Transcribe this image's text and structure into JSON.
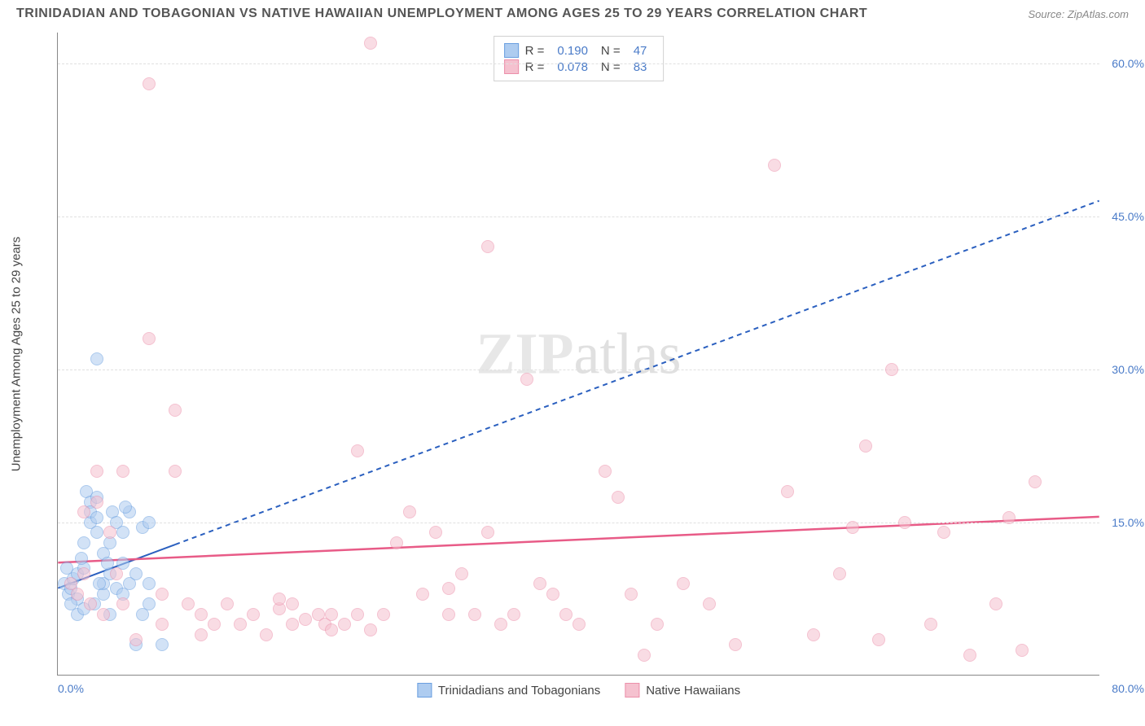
{
  "title": "TRINIDADIAN AND TOBAGONIAN VS NATIVE HAWAIIAN UNEMPLOYMENT AMONG AGES 25 TO 29 YEARS CORRELATION CHART",
  "source": "Source: ZipAtlas.com",
  "watermark_a": "ZIP",
  "watermark_b": "atlas",
  "y_axis_label": "Unemployment Among Ages 25 to 29 years",
  "chart": {
    "type": "scatter",
    "xlim": [
      0,
      80
    ],
    "ylim": [
      0,
      63
    ],
    "ytick_labels": [
      "15.0%",
      "30.0%",
      "45.0%",
      "60.0%"
    ],
    "ytick_values": [
      15,
      30,
      45,
      60
    ],
    "xtick_left": "0.0%",
    "xtick_right": "80.0%",
    "grid_color": "#e0e0e0",
    "background_color": "#ffffff",
    "axis_color": "#888888",
    "tick_label_color": "#4a7bc8",
    "marker_radius": 8,
    "marker_stroke_width": 1
  },
  "series": [
    {
      "name": "Trinidadians and Tobagonians",
      "fill_color": "#aeccf0",
      "stroke_color": "#6a9fe0",
      "fill_opacity": 0.55,
      "R": "0.190",
      "N": "47",
      "trend": {
        "x1": 0,
        "y1": 8.5,
        "x2": 80,
        "y2": 46.5,
        "solid_until_x": 9,
        "color": "#2a5fbf",
        "width": 2,
        "dash": "6,5"
      },
      "points": [
        [
          0.5,
          9
        ],
        [
          0.8,
          8
        ],
        [
          1,
          8.5
        ],
        [
          1.2,
          9.5
        ],
        [
          1.5,
          7.5
        ],
        [
          1.5,
          10
        ],
        [
          2,
          10.5
        ],
        [
          2,
          13
        ],
        [
          2.2,
          18
        ],
        [
          2.5,
          15
        ],
        [
          2.5,
          17
        ],
        [
          2.5,
          16
        ],
        [
          3,
          14
        ],
        [
          3,
          15.5
        ],
        [
          3,
          17.5
        ],
        [
          3.5,
          12
        ],
        [
          3.5,
          8
        ],
        [
          3.5,
          9
        ],
        [
          4,
          10
        ],
        [
          4,
          13
        ],
        [
          4.2,
          16
        ],
        [
          4.5,
          8.5
        ],
        [
          4.5,
          15
        ],
        [
          5,
          14
        ],
        [
          5,
          8
        ],
        [
          5,
          11
        ],
        [
          5.5,
          16
        ],
        [
          5.5,
          9
        ],
        [
          6,
          3
        ],
        [
          6,
          10
        ],
        [
          6.5,
          6
        ],
        [
          6.5,
          14.5
        ],
        [
          7,
          7
        ],
        [
          7,
          9
        ],
        [
          7,
          15
        ],
        [
          3,
          31
        ],
        [
          1.5,
          6
        ],
        [
          2,
          6.5
        ],
        [
          2.8,
          7
        ],
        [
          3.2,
          9
        ],
        [
          4,
          6
        ],
        [
          8,
          3
        ],
        [
          0.7,
          10.5
        ],
        [
          1.8,
          11.5
        ],
        [
          3.8,
          11
        ],
        [
          5.2,
          16.5
        ],
        [
          1,
          7
        ]
      ]
    },
    {
      "name": "Native Hawaiians",
      "fill_color": "#f5c1cf",
      "stroke_color": "#ec8faa",
      "fill_opacity": 0.55,
      "R": "0.078",
      "N": "83",
      "trend": {
        "x1": 0,
        "y1": 11,
        "x2": 80,
        "y2": 15.5,
        "solid_until_x": 80,
        "color": "#e85b87",
        "width": 2.5,
        "dash": null
      },
      "points": [
        [
          1,
          9
        ],
        [
          1.5,
          8
        ],
        [
          2,
          16
        ],
        [
          2.5,
          7
        ],
        [
          3,
          17
        ],
        [
          3,
          20
        ],
        [
          4,
          14
        ],
        [
          4.5,
          10
        ],
        [
          5,
          20
        ],
        [
          5,
          7
        ],
        [
          6,
          3.5
        ],
        [
          7,
          33
        ],
        [
          7,
          58
        ],
        [
          8,
          5
        ],
        [
          9,
          20
        ],
        [
          9,
          26
        ],
        [
          10,
          7
        ],
        [
          11,
          6
        ],
        [
          12,
          5
        ],
        [
          13,
          7
        ],
        [
          14,
          5
        ],
        [
          15,
          6
        ],
        [
          16,
          4
        ],
        [
          17,
          6.5
        ],
        [
          17,
          7.5
        ],
        [
          18,
          7
        ],
        [
          18,
          5
        ],
        [
          19,
          5.5
        ],
        [
          20,
          6
        ],
        [
          20.5,
          5
        ],
        [
          21,
          6
        ],
        [
          21,
          4.5
        ],
        [
          22,
          5
        ],
        [
          23,
          6
        ],
        [
          23,
          22
        ],
        [
          24,
          4.5
        ],
        [
          24,
          62
        ],
        [
          25,
          6
        ],
        [
          26,
          13
        ],
        [
          27,
          16
        ],
        [
          28,
          8
        ],
        [
          29,
          14
        ],
        [
          30,
          6
        ],
        [
          30,
          8.5
        ],
        [
          31,
          10
        ],
        [
          32,
          6
        ],
        [
          33,
          14
        ],
        [
          33,
          42
        ],
        [
          34,
          5
        ],
        [
          35,
          6
        ],
        [
          36,
          29
        ],
        [
          37,
          9
        ],
        [
          38,
          8
        ],
        [
          39,
          6
        ],
        [
          40,
          5
        ],
        [
          42,
          20
        ],
        [
          43,
          17.5
        ],
        [
          44,
          8
        ],
        [
          45,
          2
        ],
        [
          46,
          5
        ],
        [
          48,
          9
        ],
        [
          50,
          7
        ],
        [
          52,
          3
        ],
        [
          55,
          50
        ],
        [
          56,
          18
        ],
        [
          58,
          4
        ],
        [
          60,
          10
        ],
        [
          61,
          14.5
        ],
        [
          62,
          22.5
        ],
        [
          63,
          3.5
        ],
        [
          64,
          30
        ],
        [
          65,
          15
        ],
        [
          67,
          5
        ],
        [
          68,
          14
        ],
        [
          70,
          2
        ],
        [
          72,
          7
        ],
        [
          73,
          15.5
        ],
        [
          74,
          2.5
        ],
        [
          75,
          19
        ],
        [
          2,
          10
        ],
        [
          3.5,
          6
        ],
        [
          8,
          8
        ],
        [
          11,
          4
        ]
      ]
    }
  ],
  "stats_legend": {
    "r_label": "R  =",
    "n_label": "N  ="
  },
  "bottom_legend": [
    {
      "swatch_fill": "#aeccf0",
      "swatch_stroke": "#6a9fe0",
      "label": "Trinidadians and Tobagonians"
    },
    {
      "swatch_fill": "#f5c1cf",
      "swatch_stroke": "#ec8faa",
      "label": "Native Hawaiians"
    }
  ]
}
